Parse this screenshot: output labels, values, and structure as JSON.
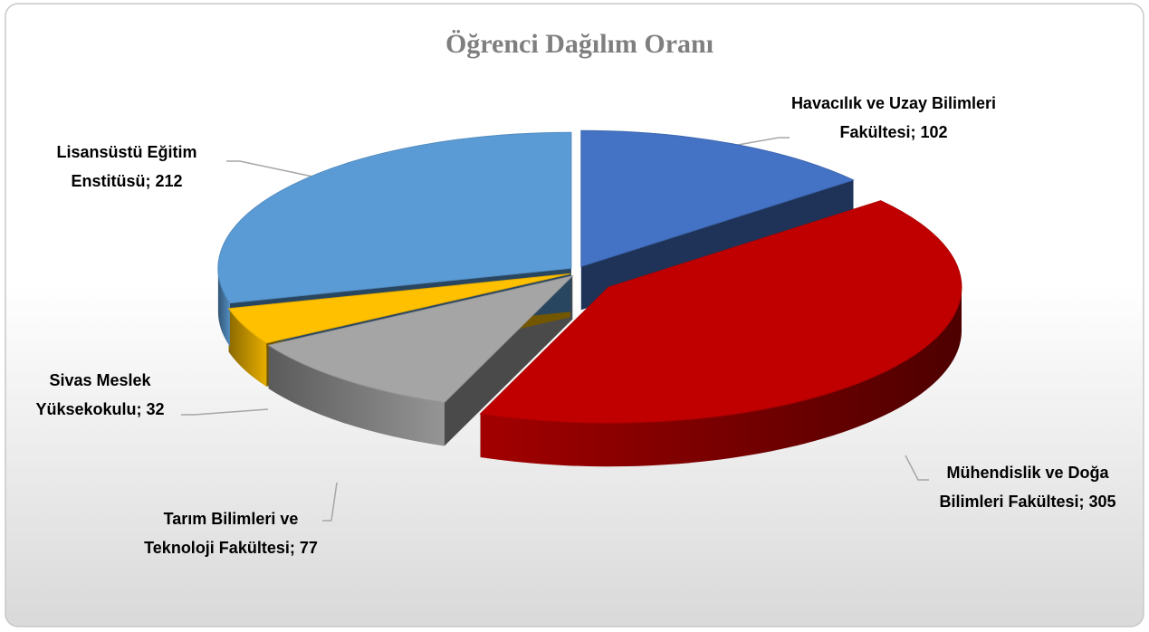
{
  "chart_data": {
    "type": "pie3d",
    "title": "Öğrenci Dağılım Oranı",
    "values": [
      102,
      305,
      77,
      32,
      212
    ],
    "value_labels": [
      "Havacılık ve Uzay Bilimleri Fakültesi; 102",
      "Mühendislik ve Doğa Bilimleri Fakültesi; 305",
      "Tarım Bilimleri ve Teknoloji Fakültesi; 77",
      "Sivas Meslek Yüksekokulu; 32",
      "Lisansüstü Eğitim Enstitüsü; 212"
    ],
    "colors": [
      "#4472c4",
      "#c00000",
      "#a5a5a5",
      "#ffc000",
      "#5b9bd5"
    ]
  }
}
